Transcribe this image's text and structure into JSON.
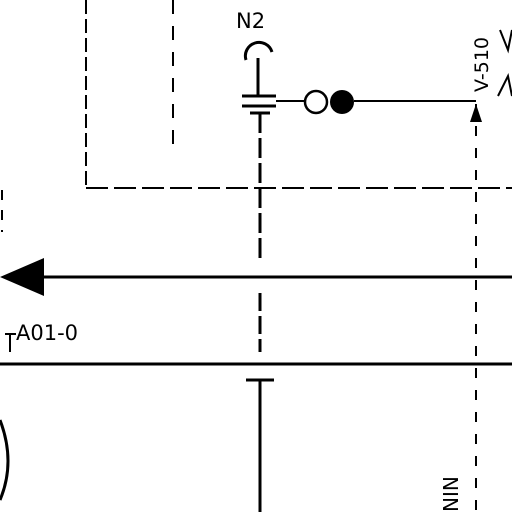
{
  "diagram": {
    "labels": {
      "top_connection": "N2",
      "vertical_tag": "V-510",
      "line_tag": "A01-0",
      "bottom_tag": "NIN"
    },
    "colors": {
      "ink": "#000000",
      "background": "#ffffff"
    }
  }
}
